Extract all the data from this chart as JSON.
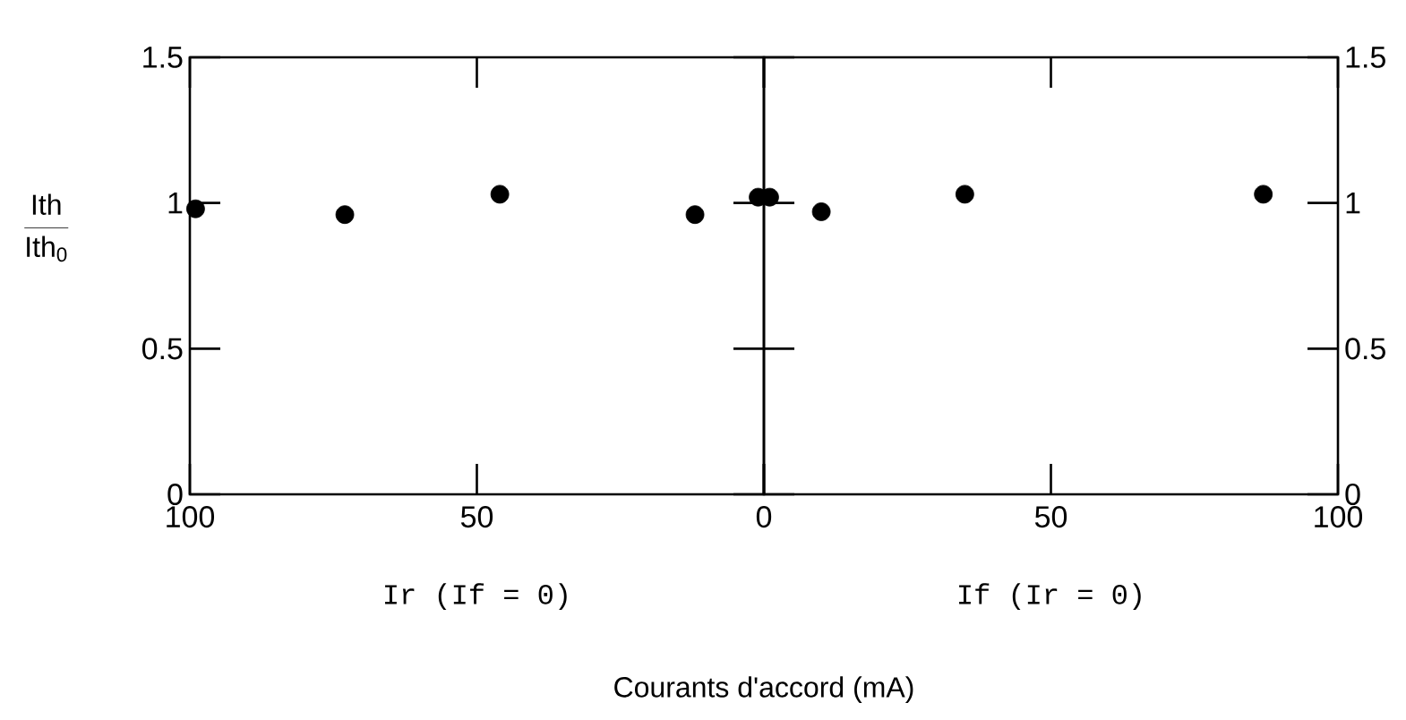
{
  "chart_data": [
    {
      "type": "scatter",
      "xlabel": "Ir (If = 0)",
      "ylabel": "\\frac{\\mathrm{Ith}}{\\mathrm{Ith}_{\\mathrm{0}}}",
      "x": [
        99,
        73,
        46,
        12,
        1
      ],
      "values": [
        0.98,
        0.96,
        1.03,
        0.96,
        1.02
      ],
      "color": "#000000",
      "marker": "circle",
      "xlim": [
        100,
        0
      ],
      "ylim": [
        0,
        1.5
      ],
      "xticks": [
        100,
        50,
        {
          "value": 0,
          "label": null
        }
      ],
      "yticks": [
        0,
        0.5,
        1,
        1.5
      ],
      "annotations": [
        "Courants d'accord (mA)"
      ]
    },
    {
      "type": "scatter",
      "xlabel": "If (Ir = 0)",
      "x": [
        1,
        10,
        35,
        87
      ],
      "values": [
        1.02,
        0.97,
        1.03,
        1.03
      ],
      "color": "#000000",
      "marker": "circle",
      "xlim": [
        0,
        100
      ],
      "ylim": [
        0,
        1.5
      ],
      "xticks": [
        0,
        50,
        100
      ],
      "yticks": [
        0,
        0.5,
        1,
        1.5
      ]
    }
  ]
}
